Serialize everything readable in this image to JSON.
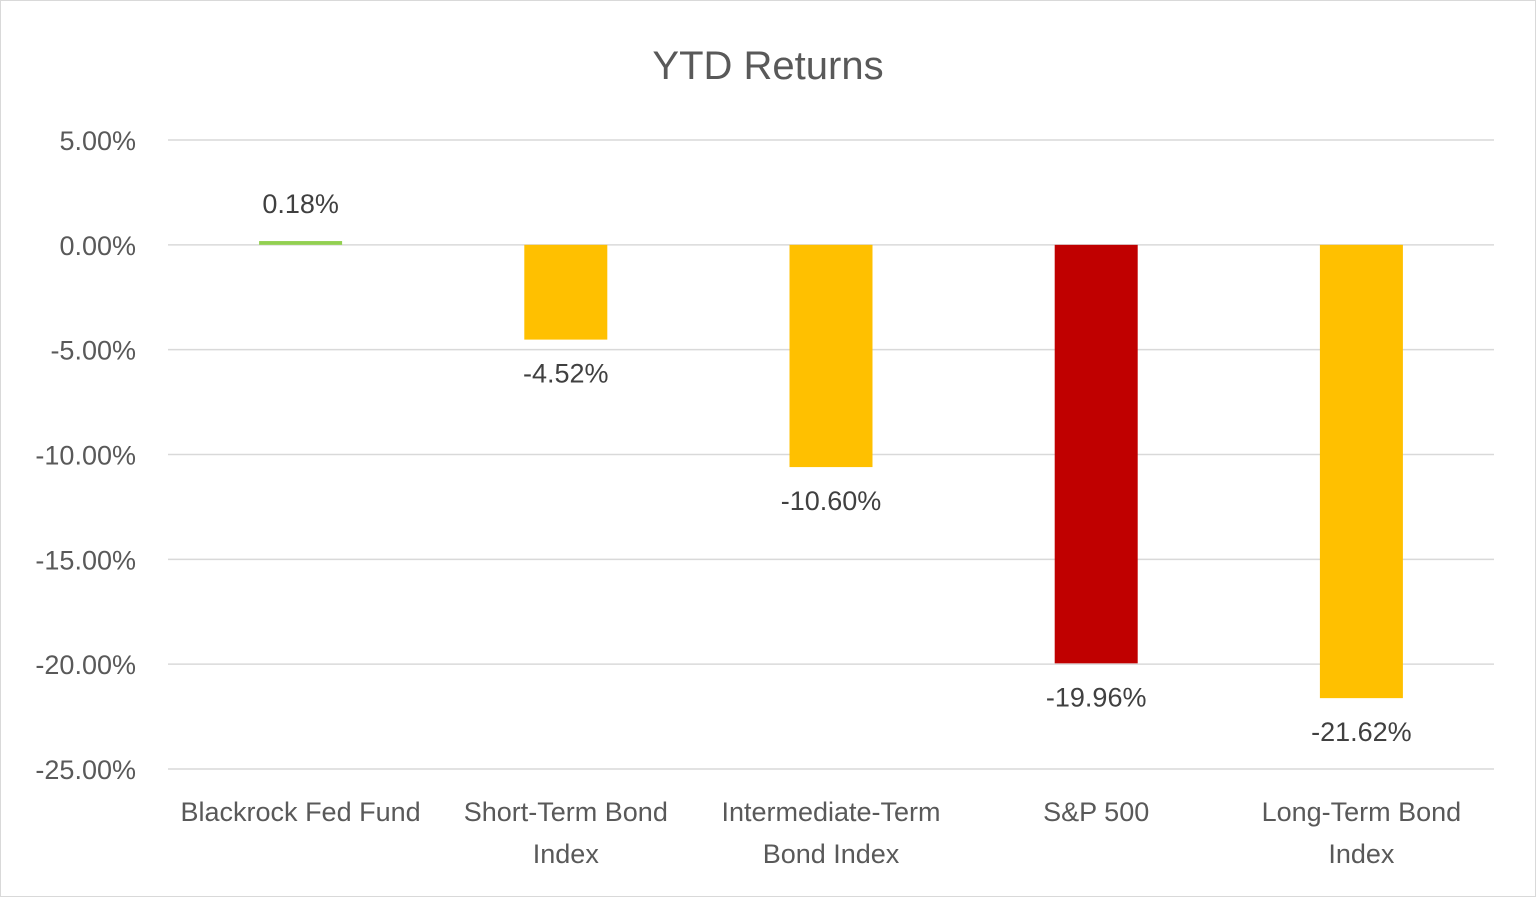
{
  "chart_data": {
    "type": "bar",
    "title": "YTD Returns",
    "xlabel": "",
    "ylabel": "",
    "categories": [
      [
        "Blackrock Fed Fund"
      ],
      [
        "Short-Term Bond",
        "Index"
      ],
      [
        "Intermediate-Term",
        "Bond Index"
      ],
      [
        "S&P 500"
      ],
      [
        "Long-Term Bond",
        "Index"
      ]
    ],
    "values": [
      0.18,
      -4.52,
      -10.6,
      -19.96,
      -21.62
    ],
    "value_labels": [
      "0.18%",
      "-4.52%",
      "-10.60%",
      "-19.96%",
      "-21.62%"
    ],
    "colors": [
      "#92d050",
      "#ffc000",
      "#ffc000",
      "#c00000",
      "#ffc000"
    ],
    "ylim": [
      -25,
      5
    ],
    "yticks": [
      5,
      0,
      -5,
      -10,
      -15,
      -20,
      -25
    ],
    "ytick_labels": [
      "5.00%",
      "0.00%",
      "-5.00%",
      "-10.00%",
      "-15.00%",
      "-20.00%",
      "-25.00%"
    ],
    "grid": true,
    "legend": "none"
  }
}
